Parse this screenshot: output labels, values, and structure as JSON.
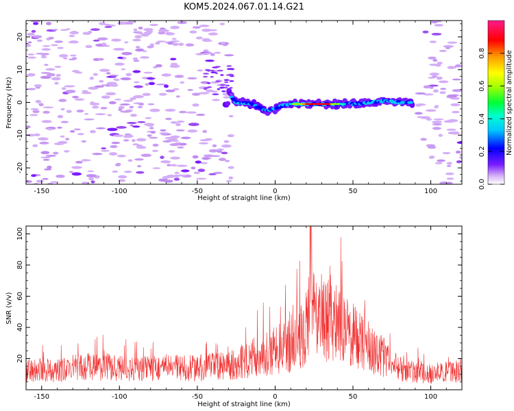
{
  "title": "KOM5.2024.067.01.14.G21",
  "chart_data": [
    {
      "type": "heatmap",
      "xlabel": "Height of straight line (km)",
      "ylabel": "Frequency (Hz)",
      "xlim": [
        -160,
        120
      ],
      "ylim": [
        -25,
        25
      ],
      "xticks": [
        -150,
        -100,
        -50,
        0,
        50,
        100
      ],
      "yticks": [
        -20,
        -10,
        0,
        10,
        20
      ],
      "colorbar": {
        "label": "Normalized spectral amplitude",
        "range": [
          0,
          1
        ],
        "ticks": [
          0.0,
          0.2,
          0.4,
          0.6,
          0.8
        ],
        "colormap": [
          "#ffffff",
          "#c99cf3",
          "#6a00ff",
          "#0000ff",
          "#00e5ff",
          "#00ff66",
          "#aaff00",
          "#ffff00",
          "#ff9900",
          "#ff0000",
          "#ff1a8c"
        ]
      },
      "ridge": {
        "description_points_x": [
          -30,
          -25,
          -20,
          -15,
          -10,
          -5,
          0,
          5,
          10,
          20,
          30,
          40,
          50,
          60,
          70,
          80,
          88
        ],
        "description_points_y": [
          3,
          0,
          0,
          -0.5,
          -1.5,
          -2.5,
          -2,
          -1,
          -0.5,
          -0.5,
          -0.5,
          -0.5,
          -0.5,
          0,
          0.5,
          0,
          0
        ],
        "peak_amplitude_x_range": [
          10,
          45
        ]
      }
    },
    {
      "type": "line",
      "xlabel": "Height of straight line (km)",
      "ylabel": "SNR (v/v)",
      "xlim": [
        -160,
        120
      ],
      "ylim": [
        0,
        105
      ],
      "xticks": [
        -150,
        -100,
        -50,
        0,
        50,
        100
      ],
      "yticks": [
        20,
        40,
        60,
        80,
        100
      ],
      "series": [
        {
          "color": "#f03030",
          "x": [
            -160,
            -150,
            -140,
            -130,
            -120,
            -110,
            -100,
            -90,
            -80,
            -70,
            -60,
            -50,
            -40,
            -30,
            -20,
            -10,
            0,
            10,
            15,
            20,
            22,
            23,
            25,
            30,
            35,
            40,
            50,
            60,
            70,
            80,
            90,
            100,
            110,
            120
          ],
          "y": [
            13,
            14,
            13,
            15,
            16,
            16,
            15,
            14,
            15,
            15,
            15,
            15,
            16,
            17,
            20,
            24,
            27,
            32,
            36,
            42,
            60,
            95,
            52,
            50,
            48,
            45,
            38,
            30,
            22,
            15,
            12,
            11,
            12,
            14
          ]
        }
      ]
    }
  ]
}
